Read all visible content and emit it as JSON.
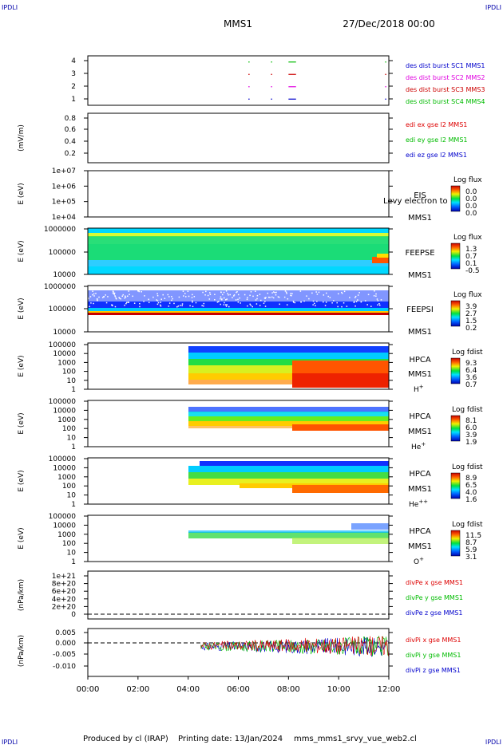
{
  "header": {
    "corner_label": "IPDLI",
    "mission": "MMS1",
    "date": "27/Dec/2018 00:00"
  },
  "footer": {
    "produced_by": "Produced by cl (IRAP)",
    "printing_date": "Printing date: 13/Jan/2024",
    "file_name": "mms_mms1_srvy_vue_web2.cl"
  },
  "time_axis": {
    "ticks": [
      "00:00",
      "02:00",
      "04:00",
      "06:00",
      "08:00",
      "10:00",
      "12:00"
    ],
    "range_hours": [
      0,
      12
    ]
  },
  "chart_data": [
    {
      "id": "burst",
      "type": "scatter",
      "ylabel": "",
      "yticks": [
        "4",
        "3",
        "2",
        "1"
      ],
      "ylim": [
        0.5,
        4.5
      ],
      "legend": [
        {
          "label": "des dist burst SC1 MMS1",
          "color": "#0000cc"
        },
        {
          "label": "des dist burst SC2 MMS2",
          "color": "#e000e0"
        },
        {
          "label": "des dist burst SC3 MMS3",
          "color": "#cc0000"
        },
        {
          "label": "des dist burst SC4 MMS4",
          "color": "#00bb00"
        }
      ],
      "series": [
        {
          "level": 4,
          "color": "#00bb00",
          "intervals": [
            [
              6.4,
              6.45
            ],
            [
              7.3,
              7.35
            ],
            [
              8.0,
              8.3
            ],
            [
              11.85,
              11.9
            ]
          ]
        },
        {
          "level": 3,
          "color": "#cc0000",
          "intervals": [
            [
              6.4,
              6.45
            ],
            [
              7.3,
              7.35
            ],
            [
              8.0,
              8.3
            ],
            [
              11.85,
              11.9
            ]
          ]
        },
        {
          "level": 2,
          "color": "#e000e0",
          "intervals": [
            [
              6.4,
              6.45
            ],
            [
              7.3,
              7.35
            ],
            [
              8.0,
              8.3
            ],
            [
              11.85,
              11.9
            ]
          ]
        },
        {
          "level": 1,
          "color": "#0000cc",
          "intervals": [
            [
              6.4,
              6.45
            ],
            [
              7.3,
              7.35
            ],
            [
              8.0,
              8.3
            ],
            [
              11.85,
              11.9
            ]
          ]
        }
      ]
    },
    {
      "id": "edi",
      "type": "line",
      "ylabel": "(mV/m)",
      "yticks": [
        "0.8",
        "0.6",
        "0.4",
        "0.2"
      ],
      "ylim": [
        0.1,
        0.85
      ],
      "legend": [
        {
          "label": "edi ex gse l2 MMS1",
          "color": "#dd0000"
        },
        {
          "label": "edi ey gse l2 MMS1",
          "color": "#00bb00"
        },
        {
          "label": "edi ez gse l2 MMS1",
          "color": "#0000cc"
        }
      ]
    },
    {
      "id": "eis",
      "type": "heatmap",
      "ylabel": "E (eV)",
      "yticks": [
        "1e+07",
        "1e+06",
        "1e+05",
        "1e+04"
      ],
      "instrument": [
        "EIS",
        "MMS1"
      ],
      "overlay_text": "Levy electron to",
      "colorbar": {
        "title": "Log flux",
        "ticks": [
          "0.0",
          "0.0",
          "0.0",
          "0.0"
        ]
      },
      "coverage": "none"
    },
    {
      "id": "feepse",
      "type": "heatmap",
      "ylabel": "E (eV)",
      "yticks": [
        "1000000",
        "100000",
        "10000"
      ],
      "instrument": [
        "FEEPSE",
        "MMS1"
      ],
      "colorbar": {
        "title": "Log flux",
        "ticks": [
          "1.3",
          "0.7",
          "0.1",
          "-0.5"
        ]
      },
      "coverage": [
        0,
        12
      ]
    },
    {
      "id": "feepsi",
      "type": "heatmap",
      "ylabel": "E (eV)",
      "yticks": [
        "1000000",
        "100000",
        "10000"
      ],
      "instrument": [
        "FEEPSI",
        "MMS1"
      ],
      "colorbar": {
        "title": "Log flux",
        "ticks": [
          "3.9",
          "2.7",
          "1.5",
          "0.2"
        ]
      },
      "coverage": [
        0,
        12
      ]
    },
    {
      "id": "hpca_h",
      "type": "heatmap",
      "ylabel": "E (eV)",
      "yticks": [
        "100000",
        "10000",
        "1000",
        "100",
        "10",
        "1"
      ],
      "instrument": [
        "HPCA",
        "MMS1"
      ],
      "species": {
        "base": "H",
        "sup": "+"
      },
      "colorbar": {
        "title": "Log fdist",
        "ticks": [
          "9.3",
          "6.4",
          "3.6",
          "0.7"
        ]
      },
      "coverage": [
        4.0,
        12
      ]
    },
    {
      "id": "hpca_he",
      "type": "heatmap",
      "ylabel": "E (eV)",
      "yticks": [
        "100000",
        "10000",
        "1000",
        "100",
        "10",
        "1"
      ],
      "instrument": [
        "HPCA",
        "MMS1"
      ],
      "species": {
        "base": "He",
        "sup": "+"
      },
      "colorbar": {
        "title": "Log fdist",
        "ticks": [
          "8.1",
          "6.0",
          "3.9",
          "1.9"
        ]
      },
      "coverage": [
        4.0,
        12
      ]
    },
    {
      "id": "hpca_hepp",
      "type": "heatmap",
      "ylabel": "E (eV)",
      "yticks": [
        "100000",
        "10000",
        "1000",
        "100",
        "10",
        "1"
      ],
      "instrument": [
        "HPCA",
        "MMS1"
      ],
      "species": {
        "base": "He",
        "sup": "++"
      },
      "colorbar": {
        "title": "Log fdist",
        "ticks": [
          "8.9",
          "6.5",
          "4.0",
          "1.6"
        ]
      },
      "coverage": [
        4.0,
        12
      ]
    },
    {
      "id": "hpca_o",
      "type": "heatmap",
      "ylabel": "E (eV)",
      "yticks": [
        "100000",
        "10000",
        "1000",
        "100",
        "10",
        "1"
      ],
      "instrument": [
        "HPCA",
        "MMS1"
      ],
      "species": {
        "base": "O",
        "sup": "+"
      },
      "colorbar": {
        "title": "Log fdist",
        "ticks": [
          "11.5",
          "8.7",
          "5.9",
          "3.1"
        ]
      },
      "coverage": [
        4.0,
        12
      ]
    },
    {
      "id": "divpe",
      "type": "line",
      "ylabel": "(nPa/km)",
      "yticks": [
        "1e+21",
        "8e+20",
        "6e+20",
        "4e+20",
        "2e+20",
        "0"
      ],
      "ylim": [
        -1e+20,
        1.1e+21
      ],
      "legend": [
        {
          "label": "divPe x gse MMS1",
          "color": "#dd0000"
        },
        {
          "label": "divPe y gse MMS1",
          "color": "#00bb00"
        },
        {
          "label": "divPe z gse MMS1",
          "color": "#0000cc"
        }
      ]
    },
    {
      "id": "divpi",
      "type": "line",
      "ylabel": "(nPa/km)",
      "yticks": [
        "0.005",
        "0.000",
        "-0.005",
        "-0.010"
      ],
      "ylim": [
        -0.0125,
        0.0075
      ],
      "legend": [
        {
          "label": "divPi x gse MMS1",
          "color": "#dd0000"
        },
        {
          "label": "divPi y gse MMS1",
          "color": "#00bb00"
        },
        {
          "label": "divPi z gse MMS1",
          "color": "#0000cc"
        }
      ],
      "coverage": [
        4.5,
        12
      ]
    }
  ]
}
